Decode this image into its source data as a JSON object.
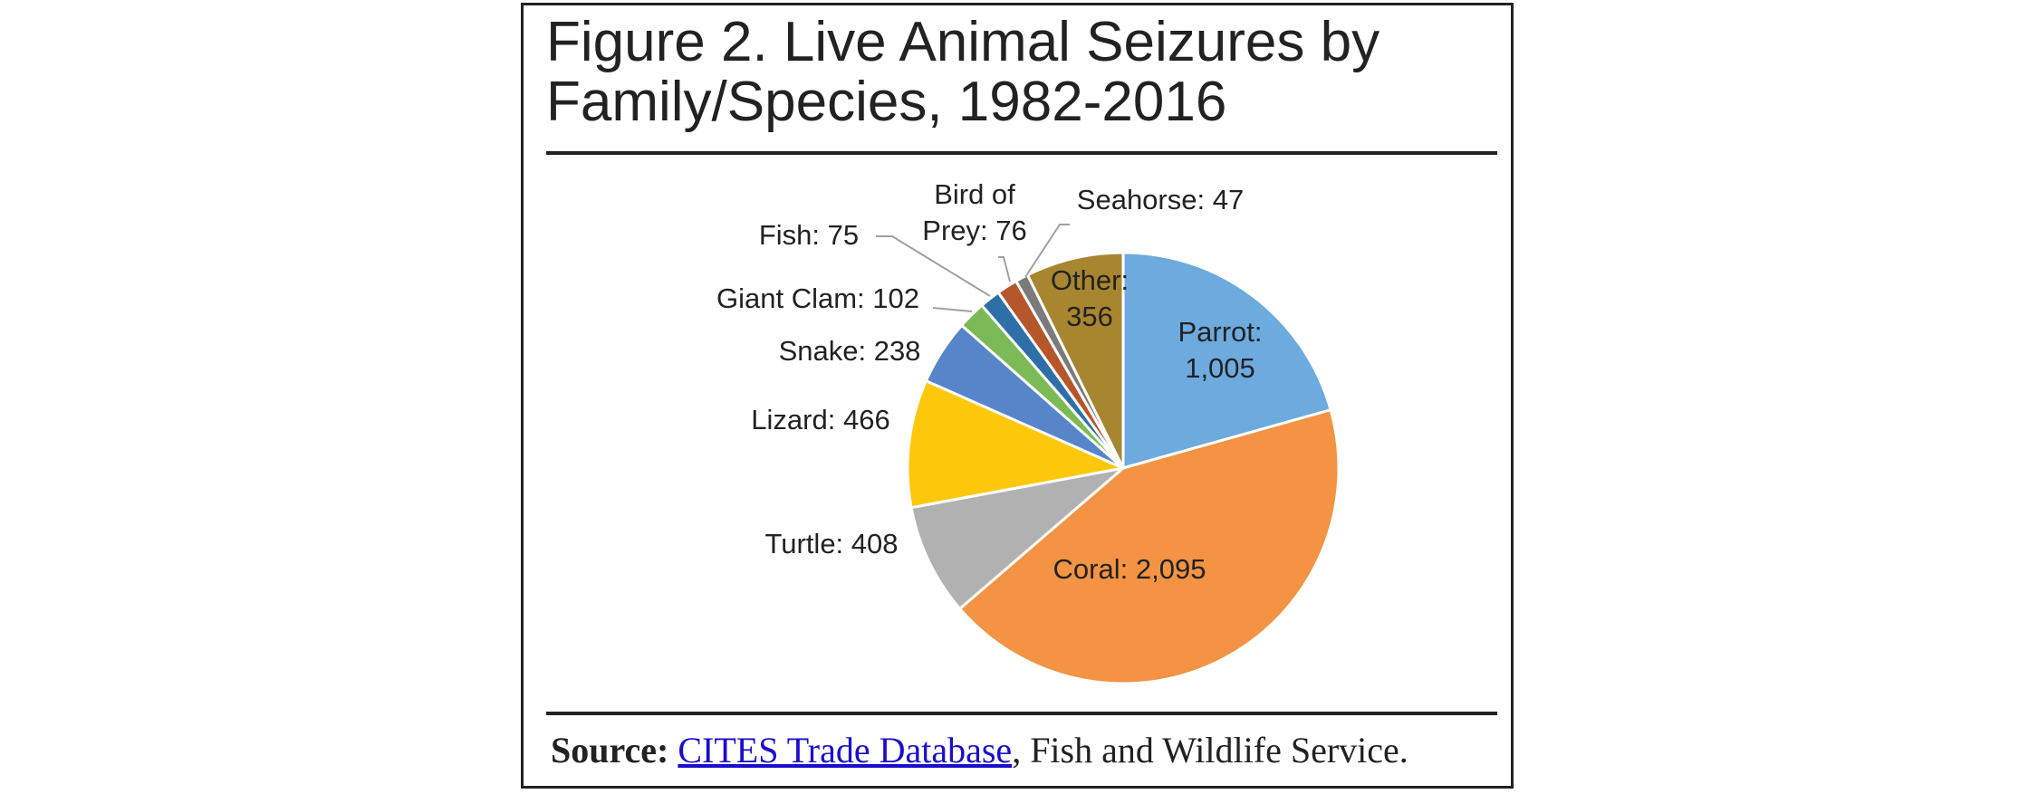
{
  "chart_data": {
    "type": "pie",
    "title": "Figure 2. Live Animal Seizures by Family/Species, 1982-2016",
    "categories": [
      "Parrot:",
      "Coral:",
      "Turtle:",
      "Lizard:",
      "Snake:",
      "Giant Clam:",
      "Fish:",
      "Bird of Prey:",
      "Seahorse:",
      "Other:"
    ],
    "values": [
      1005,
      2095,
      408,
      466,
      238,
      102,
      75,
      76,
      47,
      356
    ],
    "value_labels": [
      "1,005",
      "2,095",
      "408",
      "466",
      "238",
      "102",
      "75",
      "76",
      "47",
      "356"
    ],
    "colors": [
      "#6dabdf",
      "#f39343",
      "#b1b1b1",
      "#fdc80c",
      "#5686c9",
      "#7bba56",
      "#2e6fa7",
      "#b6572b",
      "#7b7b7b",
      "#a8862f"
    ]
  },
  "source": {
    "label": "Source:",
    "link": "CITES Trade Database",
    "text": ", Fish and Wildlife Service."
  }
}
